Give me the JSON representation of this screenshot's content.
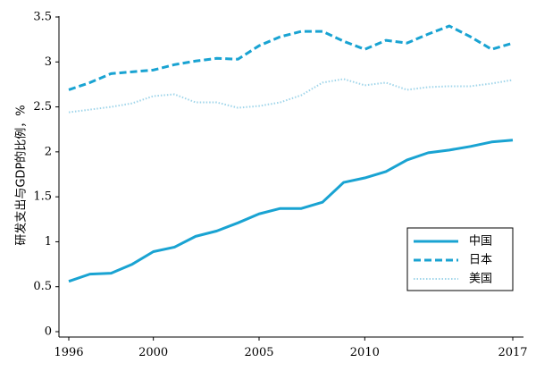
{
  "chart_data": {
    "type": "line",
    "title": "",
    "xlabel": "",
    "ylabel": "研发支出与GDP的比例，%",
    "xlim": [
      1996,
      2017
    ],
    "ylim": [
      0,
      3.5
    ],
    "x_ticks": [
      "1996",
      "2000",
      "2005",
      "2010",
      "2017"
    ],
    "y_ticks": [
      "0",
      "0.5",
      "1",
      "1.5",
      "2",
      "2.5",
      "3",
      "3.5"
    ],
    "grid": false,
    "legend_position": "bottom-right",
    "x": [
      1996,
      1997,
      1998,
      1999,
      2000,
      2001,
      2002,
      2003,
      2004,
      2005,
      2006,
      2007,
      2008,
      2009,
      2010,
      2011,
      2012,
      2013,
      2014,
      2015,
      2016,
      2017
    ],
    "series": [
      {
        "name": "中国",
        "style": "solid",
        "color": "#19a3d2",
        "values": [
          0.56,
          0.64,
          0.65,
          0.75,
          0.89,
          0.94,
          1.06,
          1.12,
          1.21,
          1.31,
          1.37,
          1.37,
          1.44,
          1.66,
          1.71,
          1.78,
          1.91,
          1.99,
          2.02,
          2.06,
          2.11,
          2.13
        ]
      },
      {
        "name": "日本",
        "style": "dashed",
        "color": "#19a3d2",
        "values": [
          2.69,
          2.77,
          2.87,
          2.89,
          2.91,
          2.97,
          3.01,
          3.04,
          3.03,
          3.18,
          3.28,
          3.34,
          3.34,
          3.23,
          3.14,
          3.24,
          3.21,
          3.31,
          3.4,
          3.28,
          3.14,
          3.21
        ]
      },
      {
        "name": "美国",
        "style": "dotted",
        "color": "#9fd5ea",
        "values": [
          2.44,
          2.47,
          2.5,
          2.54,
          2.62,
          2.64,
          2.55,
          2.55,
          2.49,
          2.51,
          2.55,
          2.63,
          2.77,
          2.81,
          2.74,
          2.77,
          2.69,
          2.72,
          2.73,
          2.73,
          2.76,
          2.8
        ]
      }
    ]
  }
}
